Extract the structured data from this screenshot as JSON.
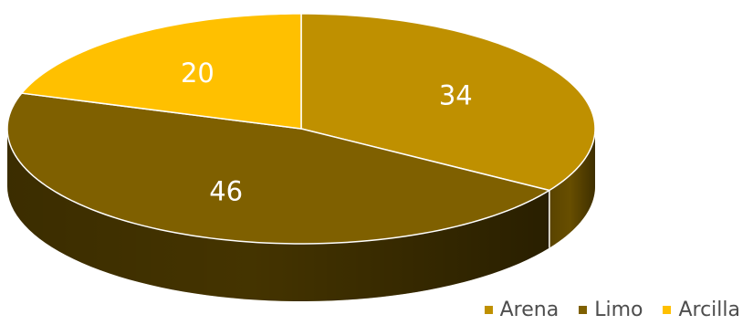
{
  "chart_data": {
    "type": "pie",
    "title": "",
    "labels": [
      "Arena",
      "Limo",
      "Arcilla"
    ],
    "values": [
      34,
      46,
      20
    ],
    "colors": [
      "#BF9000",
      "#7F6000",
      "#FFC000"
    ],
    "legend_position": "bottom-right",
    "data_labels": [
      "34",
      "46",
      "20"
    ]
  }
}
